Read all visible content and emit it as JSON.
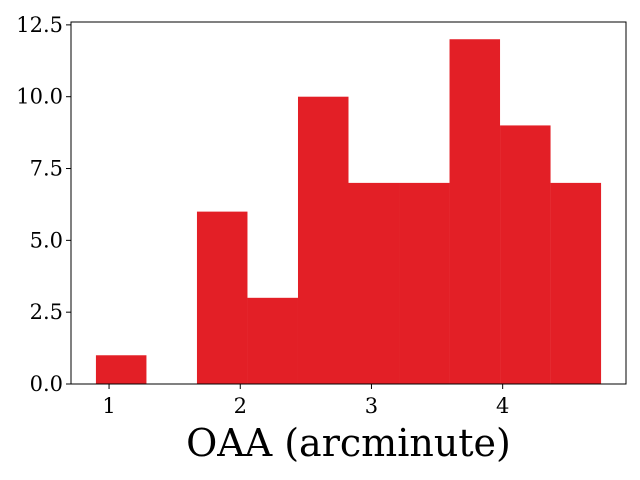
{
  "chart_data": {
    "type": "bar",
    "subtype": "histogram",
    "xlabel": "OAA (arcminute)",
    "ylabel": "",
    "title": "",
    "bins": [
      {
        "x0": 0.9,
        "x1": 1.285,
        "count": 1
      },
      {
        "x0": 1.285,
        "x1": 1.67,
        "count": 0
      },
      {
        "x0": 1.67,
        "x1": 2.055,
        "count": 6
      },
      {
        "x0": 2.055,
        "x1": 2.44,
        "count": 3
      },
      {
        "x0": 2.44,
        "x1": 2.825,
        "count": 10
      },
      {
        "x0": 2.825,
        "x1": 3.21,
        "count": 7
      },
      {
        "x0": 3.21,
        "x1": 3.595,
        "count": 7
      },
      {
        "x0": 3.595,
        "x1": 3.98,
        "count": 12
      },
      {
        "x0": 3.98,
        "x1": 4.365,
        "count": 9
      },
      {
        "x0": 4.365,
        "x1": 4.75,
        "count": 7
      }
    ],
    "xlim": [
      0.71,
      4.94
    ],
    "ylim": [
      0,
      12.6
    ],
    "xticks": [
      {
        "value": 1,
        "label": "1"
      },
      {
        "value": 2,
        "label": "2"
      },
      {
        "value": 3,
        "label": "3"
      },
      {
        "value": 4,
        "label": "4"
      }
    ],
    "yticks": [
      {
        "value": 0,
        "label": "0.0"
      },
      {
        "value": 2.5,
        "label": "2.5"
      },
      {
        "value": 5,
        "label": "5.0"
      },
      {
        "value": 7.5,
        "label": "7.5"
      },
      {
        "value": 10,
        "label": "10.0"
      },
      {
        "value": 12.5,
        "label": "12.5"
      }
    ],
    "bar_color": "#e31f26",
    "grid": false,
    "legend": "none"
  }
}
